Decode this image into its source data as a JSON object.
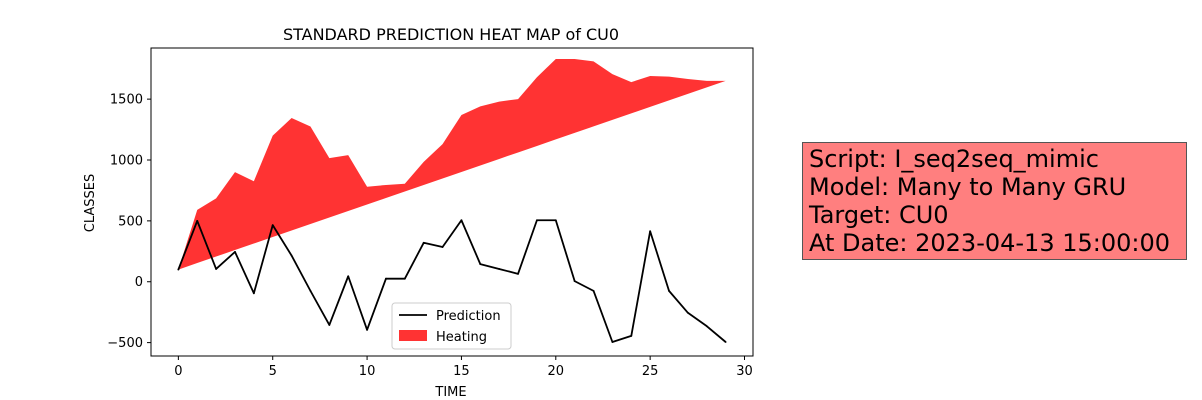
{
  "chart_data": {
    "type": "area",
    "title": "STANDARD PREDICTION HEAT MAP of CU0",
    "xlabel": "TIME",
    "ylabel": "CLASSES",
    "xlim": [
      -1.45,
      30.45
    ],
    "ylim": [
      -610,
      1920
    ],
    "xticks": [
      0,
      5,
      10,
      15,
      20,
      25,
      30
    ],
    "yticks": [
      -500,
      0,
      500,
      1000,
      1500
    ],
    "grid": false,
    "legend_position": "lower-center",
    "x": [
      0,
      1,
      2,
      3,
      4,
      5,
      6,
      7,
      8,
      9,
      10,
      11,
      12,
      13,
      14,
      15,
      16,
      17,
      18,
      19,
      20,
      21,
      22,
      23,
      24,
      25,
      26,
      27,
      28,
      29
    ],
    "series": [
      {
        "name": "Prediction",
        "kind": "line",
        "color": "#000000",
        "values": [
          100,
          500,
          105,
          245,
          -95,
          465,
          215,
          -75,
          -355,
          45,
          -395,
          25,
          25,
          320,
          285,
          505,
          145,
          105,
          65,
          505,
          505,
          5,
          -75,
          -495,
          -445,
          415,
          -75,
          -255,
          -365,
          -495
        ]
      },
      {
        "name": "Heating",
        "kind": "fill_between",
        "color": "#ff0000",
        "alpha": 0.8,
        "lower": [
          100,
          153.4,
          206.9,
          260.3,
          313.8,
          367.2,
          420.7,
          474.1,
          527.6,
          581.0,
          634.5,
          687.9,
          741.4,
          794.8,
          848.3,
          901.7,
          955.2,
          1008.6,
          1062.1,
          1115.5,
          1169.0,
          1222.4,
          1275.9,
          1329.3,
          1382.8,
          1436.2,
          1489.7,
          1543.1,
          1596.6,
          1650
        ],
        "upper": [
          100,
          590,
          685,
          900,
          825,
          1200,
          1345,
          1275,
          1015,
          1040,
          780,
          795,
          805,
          985,
          1130,
          1370,
          1440,
          1480,
          1500,
          1680,
          1830,
          1830,
          1810,
          1705,
          1640,
          1690,
          1685,
          1665,
          1650,
          1650
        ]
      }
    ]
  },
  "info": {
    "lines": [
      "Script: I_seq2seq_mimic",
      "Model: Many to Many GRU",
      "Target: CU0",
      "At Date: 2023-04-13 15:00:00"
    ],
    "background": "#ff7f7f"
  }
}
